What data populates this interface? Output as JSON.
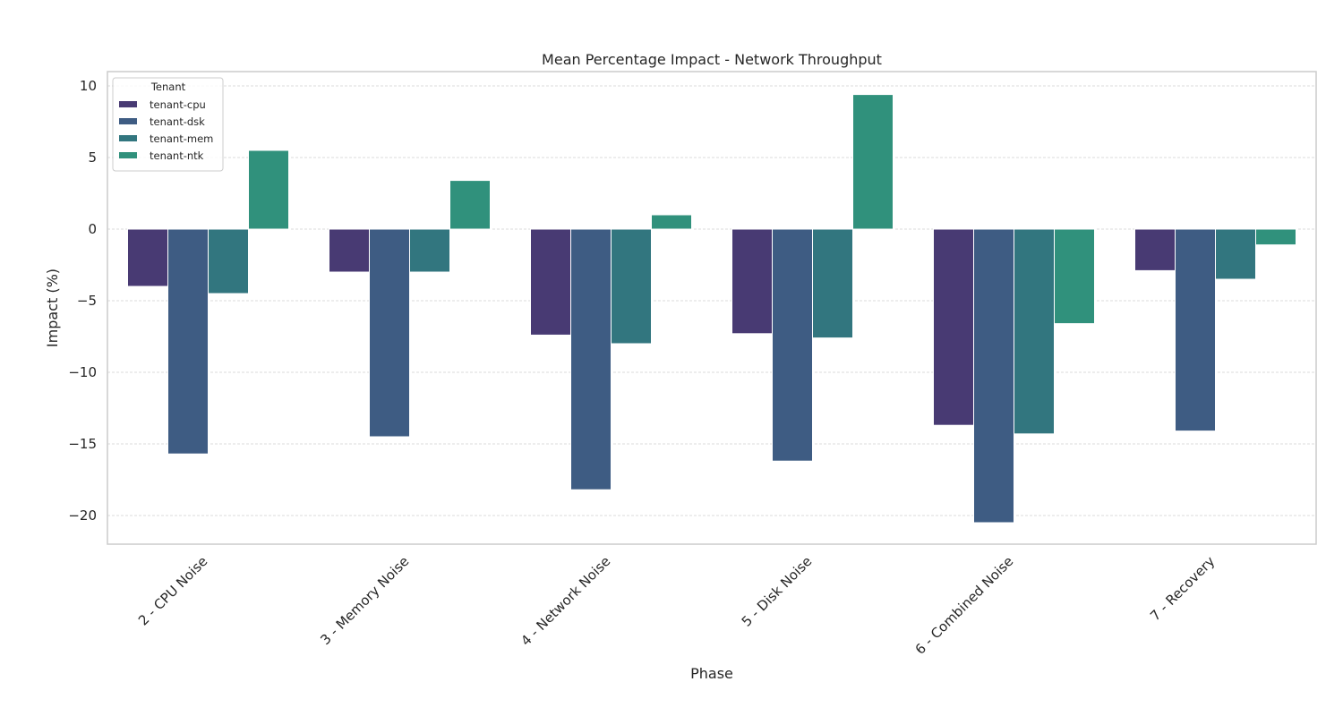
{
  "chart_data": {
    "type": "bar",
    "title": "Mean Percentage Impact - Network Throughput",
    "xlabel": "Phase",
    "ylabel": "Impact (%)",
    "ylim": [
      -22,
      11
    ],
    "yticks": [
      10,
      5,
      0,
      -5,
      -10,
      -15,
      -20
    ],
    "grid": true,
    "legend_position": "top-left",
    "legend_title": "Tenant",
    "categories": [
      "2 - CPU Noise",
      "3 - Memory Noise",
      "4 - Network Noise",
      "5 - Disk Noise",
      "6 - Combined Noise",
      "7 - Recovery"
    ],
    "series": [
      {
        "name": "tenant-cpu",
        "color": "#483a73",
        "values": [
          -4.0,
          -3.0,
          -7.4,
          -7.3,
          -13.7,
          -2.9
        ]
      },
      {
        "name": "tenant-dsk",
        "color": "#3e5c83",
        "values": [
          -15.7,
          -14.5,
          -18.2,
          -16.2,
          -20.5,
          -14.1
        ]
      },
      {
        "name": "tenant-mem",
        "color": "#32767f",
        "values": [
          -4.5,
          -3.0,
          -8.0,
          -7.6,
          -14.3,
          -3.5
        ]
      },
      {
        "name": "tenant-ntk",
        "color": "#30917c",
        "values": [
          5.5,
          3.4,
          1.0,
          9.4,
          -6.6,
          -1.1
        ]
      }
    ]
  }
}
